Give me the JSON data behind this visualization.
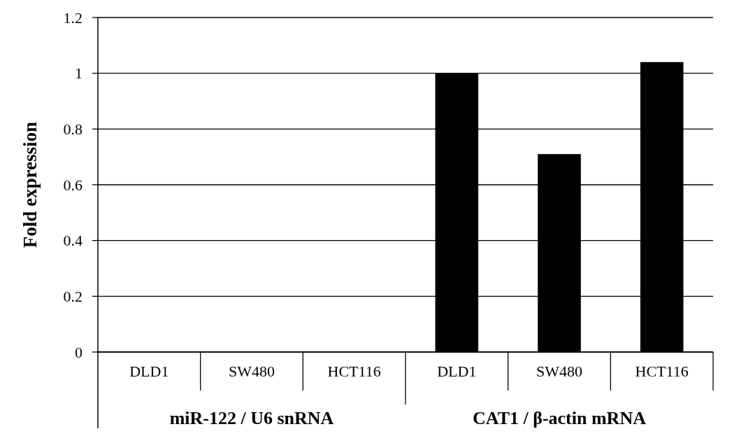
{
  "chart_data": {
    "type": "bar",
    "ylabel": "Fold expression",
    "categories": [
      "DLD1",
      "SW480",
      "HCT116",
      "DLD1",
      "SW480",
      "HCT116"
    ],
    "values": [
      0,
      0,
      0,
      1,
      0.71,
      1.04
    ],
    "color": "#000000",
    "ylim": [
      0,
      1.2
    ],
    "yticks": [
      0,
      0.2,
      0.4,
      0.6,
      0.8,
      1,
      1.2
    ],
    "grid": "y",
    "annotations": [
      "miR-122 / U6 snRNA",
      "CAT1 / β-actin mRNA"
    ]
  }
}
